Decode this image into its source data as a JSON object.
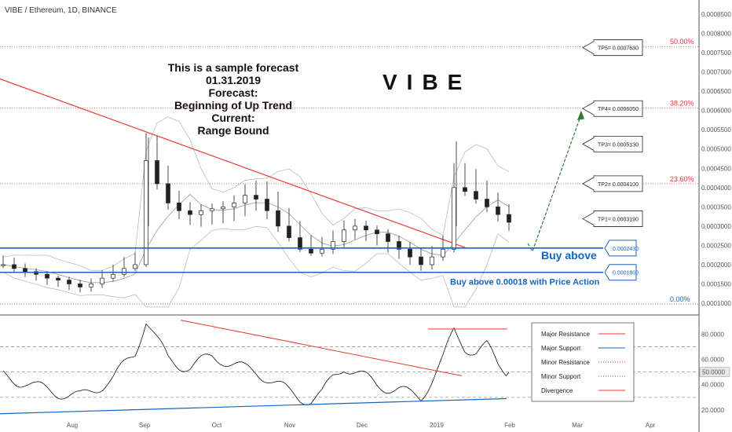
{
  "header": {
    "title": "VIBE / Ethereum, 1D, BINANCE"
  },
  "brand": "VIBE",
  "annotation": [
    "This is a sample forecast",
    "01.31.2019",
    "Forecast:",
    "Beginning of Up Trend",
    "Current:",
    "Range Bound"
  ],
  "price_axis": {
    "ticks": [
      "0.0008500",
      "0.0008000",
      "0.0007500",
      "0.0007000",
      "0.0006500",
      "0.0006000",
      "0.0005500",
      "0.0005000",
      "0.0004500",
      "0.0004000",
      "0.0003500",
      "0.0003000",
      "0.0002500",
      "0.0002000",
      "0.0001500",
      "0.0001000"
    ]
  },
  "fib_levels": [
    {
      "label": "50.00%",
      "value": 0.000766,
      "color": "#e53935"
    },
    {
      "label": "38.20%",
      "value": 0.000606,
      "color": "#e53935"
    },
    {
      "label": "23.60%",
      "value": 0.00041,
      "color": "#e53935"
    },
    {
      "label": "0.00%",
      "value": 9.8e-05,
      "color": "#1565c0"
    }
  ],
  "targets": [
    {
      "label": "TP5= 0.0007630",
      "value": 0.000763
    },
    {
      "label": "TP4= 0.0006050",
      "value": 0.000605
    },
    {
      "label": "TP3= 0.0005130",
      "value": 0.000513
    },
    {
      "label": "TP2= 0.0004100",
      "value": 0.00041
    },
    {
      "label": "TP1= 0.0003190",
      "value": 0.000319
    }
  ],
  "support_boxes": [
    {
      "label": "0.0002430",
      "value": 0.000243
    },
    {
      "label": "0.0001800",
      "value": 0.00018
    }
  ],
  "buy_above_label": "Buy above",
  "buy_note": "Buy above 0.00018 with Price Action",
  "months": [
    "Aug",
    "Sep",
    "Oct",
    "Nov",
    "Dec",
    "2019",
    "Feb",
    "Mar",
    "Apr"
  ],
  "rsi": {
    "ticks": [
      "80.0000",
      "60.0000",
      "40.0000",
      "20.0000"
    ],
    "current_label": "50.0000"
  },
  "legend": [
    {
      "label": "Major Resistance",
      "color": "#e53935",
      "style": "solid"
    },
    {
      "label": "Major Support",
      "color": "#1565c0",
      "style": "solid"
    },
    {
      "label": "Minor Resistance",
      "color": "#e53935",
      "style": "dotted"
    },
    {
      "label": "Minor Support",
      "color": "#1565c0",
      "style": "dotted"
    },
    {
      "label": "Divergence",
      "color": "#e53935",
      "style": "solid"
    }
  ],
  "chart_data": {
    "type": "candlestick",
    "title": "VIBE / Ethereum, 1D, BINANCE",
    "x_months": [
      "Aug",
      "Sep",
      "Oct",
      "Nov",
      "Dec",
      "2019",
      "Feb",
      "Mar",
      "Apr"
    ],
    "ylim": [
      8e-05,
      0.00088
    ],
    "close_series": [
      0.0002,
      0.00019,
      0.000182,
      0.000175,
      0.000165,
      0.00016,
      0.00015,
      0.000142,
      0.00015,
      0.000165,
      0.000175,
      0.00019,
      0.0002,
      0.00047,
      0.00041,
      0.00036,
      0.00034,
      0.00033,
      0.00034,
      0.000345,
      0.00035,
      0.00036,
      0.00038,
      0.00037,
      0.00034,
      0.0003,
      0.00027,
      0.00024,
      0.00023,
      0.00024,
      0.00026,
      0.00029,
      0.0003,
      0.00029,
      0.00028,
      0.00026,
      0.00024,
      0.00022,
      0.0002,
      0.00022,
      0.00024,
      0.0004,
      0.00039,
      0.00037,
      0.00035,
      0.00033,
      0.00031
    ],
    "rsi_series": [
      47,
      44,
      42,
      38,
      36,
      34,
      32,
      30,
      35,
      40,
      45,
      55,
      65,
      92,
      75,
      60,
      56,
      54,
      58,
      62,
      60,
      56,
      52,
      50,
      46,
      40,
      34,
      30,
      28,
      32,
      46,
      55,
      50,
      45,
      40,
      38,
      36,
      32,
      30,
      45,
      60,
      82,
      70,
      66,
      70,
      56,
      50
    ],
    "rsi_ylim": [
      15,
      92
    ]
  }
}
